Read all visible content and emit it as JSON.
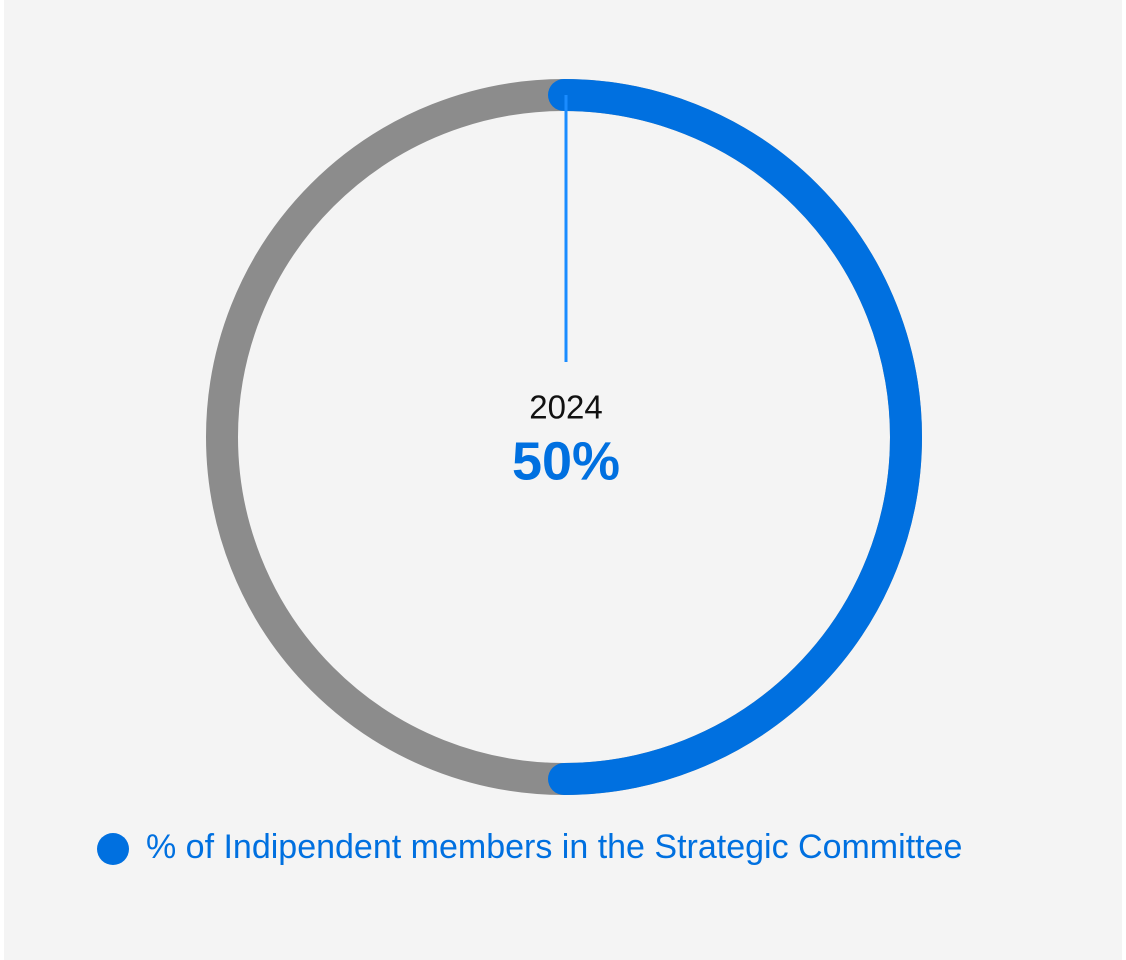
{
  "chart_data": {
    "type": "donut",
    "categories": [
      "2024"
    ],
    "series": [
      {
        "name": "% of Indipendent members in the Strategic Committee",
        "color": "#0070e0",
        "values": [
          50
        ],
        "value_labels": [
          "50%"
        ]
      }
    ],
    "ylim": [
      0,
      100
    ],
    "track_color": "#8c8c8c"
  }
}
